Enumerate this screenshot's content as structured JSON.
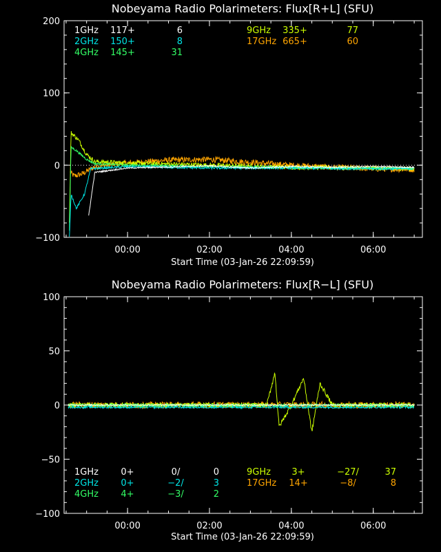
{
  "chart_data": [
    {
      "type": "line",
      "title": "Nobeyama Radio Polarimeters: Flux[R+L] (SFU)",
      "xlabel": "Start Time (03-Jan-26 22:09:59)",
      "ylabel": "",
      "ylim": [
        -100,
        200
      ],
      "yticks": [
        -100,
        0,
        100,
        200
      ],
      "ytick_labels": [
        "−100",
        "0",
        "100",
        "200"
      ],
      "xticks": [
        "00:00",
        "02:00",
        "04:00",
        "06:00"
      ],
      "x_hours_range": [
        -1.55,
        7.2
      ],
      "x_tick_hours": [
        0,
        2,
        4,
        6
      ],
      "legend": [
        {
          "freq": "1GHz",
          "a": "117+",
          "b": "6",
          "color": "#ffffff"
        },
        {
          "freq": "2GHz",
          "a": "150+",
          "b": "8",
          "color": "#00e5e5"
        },
        {
          "freq": "4GHz",
          "a": "145+",
          "b": "31",
          "color": "#33ff66"
        },
        {
          "freq": "9GHz",
          "a": "335+",
          "b": "77",
          "color": "#ccff00"
        },
        {
          "freq": "17GHz",
          "a": "665+",
          "b": "60",
          "color": "#ffa500"
        }
      ],
      "series": [
        {
          "name": "17GHz",
          "color": "#ffa500",
          "noise": 4,
          "points": [
            [
              -1.4,
              -10
            ],
            [
              -1.3,
              -15
            ],
            [
              -1.1,
              -12
            ],
            [
              -0.8,
              -2
            ],
            [
              0,
              3
            ],
            [
              1,
              7
            ],
            [
              2,
              8
            ],
            [
              3,
              4
            ],
            [
              4,
              0
            ],
            [
              5,
              -3
            ],
            [
              6,
              -5
            ],
            [
              7,
              -6
            ]
          ]
        },
        {
          "name": "9GHz",
          "color": "#ccff00",
          "noise": 3,
          "points": [
            [
              -1.42,
              -80
            ],
            [
              -1.38,
              45
            ],
            [
              -1.2,
              35
            ],
            [
              -1,
              15
            ],
            [
              -0.8,
              5
            ],
            [
              0,
              3
            ],
            [
              2,
              0
            ],
            [
              4,
              -3
            ],
            [
              6,
              -4
            ],
            [
              7,
              -5
            ]
          ]
        },
        {
          "name": "4GHz",
          "color": "#33ff66",
          "noise": 1.5,
          "points": [
            [
              -1.42,
              -90
            ],
            [
              -1.38,
              25
            ],
            [
              -1.25,
              20
            ],
            [
              -1,
              8
            ],
            [
              -0.8,
              2
            ],
            [
              0,
              0
            ],
            [
              2,
              -2
            ],
            [
              4,
              -3
            ],
            [
              6,
              -4
            ],
            [
              7,
              -4
            ]
          ]
        },
        {
          "name": "2GHz",
          "color": "#00e5e5",
          "noise": 1.5,
          "points": [
            [
              -1.42,
              -100
            ],
            [
              -1.38,
              -40
            ],
            [
              -1.25,
              -60
            ],
            [
              -1.05,
              -40
            ],
            [
              -0.9,
              -5
            ],
            [
              0,
              -2
            ],
            [
              2,
              -4
            ],
            [
              4,
              -4
            ],
            [
              6,
              -5
            ],
            [
              7,
              -5
            ]
          ]
        },
        {
          "name": "1GHz",
          "color": "#ffffff",
          "noise": 1,
          "points": [
            [
              -0.95,
              -70
            ],
            [
              -0.8,
              -10
            ],
            [
              0,
              -4
            ],
            [
              2,
              -1
            ],
            [
              3,
              -4
            ],
            [
              4,
              -2
            ],
            [
              5,
              -3
            ],
            [
              6,
              -2
            ],
            [
              7,
              -3
            ]
          ]
        }
      ]
    },
    {
      "type": "line",
      "title": "Nobeyama Radio Polarimeters: Flux[R−L] (SFU)",
      "xlabel": "Start Time (03-Jan-26 22:09:59)",
      "ylabel": "",
      "ylim": [
        -100,
        100
      ],
      "yticks": [
        -100,
        -50,
        0,
        50,
        100
      ],
      "ytick_labels": [
        "−100",
        "−50",
        "0",
        "50",
        "100"
      ],
      "xticks": [
        "00:00",
        "02:00",
        "04:00",
        "06:00"
      ],
      "x_hours_range": [
        -1.55,
        7.2
      ],
      "x_tick_hours": [
        0,
        2,
        4,
        6
      ],
      "legend": [
        {
          "freq": "1GHz",
          "a": "0+",
          "b": "0/",
          "c": "0",
          "color": "#ffffff"
        },
        {
          "freq": "2GHz",
          "a": "0+",
          "b": "−2/",
          "c": "3",
          "color": "#00e5e5"
        },
        {
          "freq": "4GHz",
          "a": "4+",
          "b": "−3/",
          "c": "2",
          "color": "#33ff66"
        },
        {
          "freq": "9GHz",
          "a": "3+",
          "b": "−27/",
          "c": "37",
          "color": "#ccff00"
        },
        {
          "freq": "17GHz",
          "a": "14+",
          "b": "−8/",
          "c": "8",
          "color": "#ffa500"
        }
      ],
      "series": [
        {
          "name": "17GHz",
          "color": "#ffa500",
          "noise": 3,
          "points": [
            [
              -1.45,
              0
            ],
            [
              0,
              0
            ],
            [
              2,
              0
            ],
            [
              4,
              0
            ],
            [
              6,
              0
            ],
            [
              7,
              0
            ]
          ]
        },
        {
          "name": "9GHz",
          "color": "#ccff00",
          "noise": 2,
          "points": [
            [
              -1.45,
              0
            ],
            [
              2.4,
              0
            ],
            [
              3.4,
              0
            ],
            [
              3.6,
              30
            ],
            [
              3.7,
              -20
            ],
            [
              4,
              0
            ],
            [
              4.3,
              25
            ],
            [
              4.5,
              -25
            ],
            [
              4.7,
              20
            ],
            [
              5,
              0
            ],
            [
              7,
              0
            ]
          ]
        },
        {
          "name": "4GHz",
          "color": "#33ff66",
          "noise": 1,
          "points": [
            [
              -1.45,
              0
            ],
            [
              7,
              0
            ]
          ]
        },
        {
          "name": "2GHz",
          "color": "#00e5e5",
          "noise": 1,
          "points": [
            [
              -1.45,
              -2
            ],
            [
              7,
              -2
            ]
          ]
        },
        {
          "name": "1GHz",
          "color": "#ffffff",
          "noise": 0.5,
          "points": [
            [
              -1.45,
              0
            ],
            [
              7,
              0
            ]
          ]
        }
      ]
    }
  ]
}
